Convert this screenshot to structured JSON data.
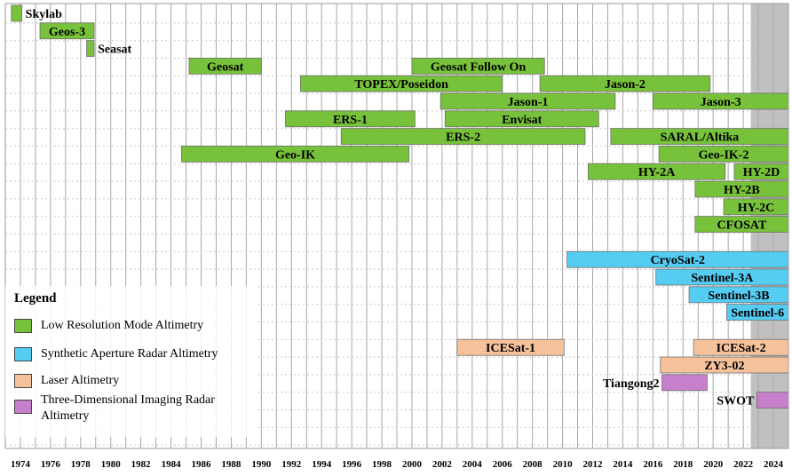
{
  "chart_data": {
    "type": "timeline",
    "title": "",
    "xlabel": "",
    "ylabel": "",
    "xlim": [
      1973,
      2025
    ],
    "xticks": [
      1974,
      1976,
      1978,
      1980,
      1982,
      1984,
      1986,
      1988,
      1990,
      1992,
      1994,
      1996,
      1998,
      2000,
      2002,
      2004,
      2006,
      2008,
      2010,
      2012,
      2014,
      2016,
      2018,
      2020,
      2022,
      2024
    ],
    "grid": "vertical",
    "shaded_region": [
      2022.5,
      2025
    ],
    "colors": {
      "low_resolution": "#77c23a",
      "sar": "#55ccf2",
      "laser": "#f6c29b",
      "imaging_radar": "#c77fcc",
      "shade": "#c0c0c0"
    },
    "missions": [
      {
        "name": "Skylab",
        "start": 1973.4,
        "end": 1974.1,
        "row": 0,
        "category": "low_resolution",
        "label_pos": "right"
      },
      {
        "name": "Geos-3",
        "start": 1975.3,
        "end": 1978.9,
        "row": 1,
        "category": "low_resolution",
        "label_pos": "inside"
      },
      {
        "name": "Seasat",
        "start": 1978.4,
        "end": 1978.9,
        "row": 2,
        "category": "low_resolution",
        "label_pos": "right"
      },
      {
        "name": "Geosat",
        "start": 1985.2,
        "end": 1990.0,
        "row": 3,
        "category": "low_resolution",
        "label_pos": "inside"
      },
      {
        "name": "Geosat Follow On",
        "start": 2000.0,
        "end": 2008.8,
        "row": 3,
        "category": "low_resolution",
        "label_pos": "inside"
      },
      {
        "name": "TOPEX/Poseidon",
        "start": 1992.6,
        "end": 2006.0,
        "row": 4,
        "category": "low_resolution",
        "label_pos": "inside"
      },
      {
        "name": "Jason-2",
        "start": 2008.5,
        "end": 2019.8,
        "row": 4,
        "category": "low_resolution",
        "label_pos": "inside"
      },
      {
        "name": "Jason-1",
        "start": 2001.9,
        "end": 2013.5,
        "row": 5,
        "category": "low_resolution",
        "label_pos": "inside"
      },
      {
        "name": "Jason-3",
        "start": 2016.0,
        "end": 2025.0,
        "row": 5,
        "category": "low_resolution",
        "label_pos": "inside"
      },
      {
        "name": "ERS-1",
        "start": 1991.6,
        "end": 2000.2,
        "row": 6,
        "category": "low_resolution",
        "label_pos": "inside"
      },
      {
        "name": "Envisat",
        "start": 2002.2,
        "end": 2012.4,
        "row": 6,
        "category": "low_resolution",
        "label_pos": "inside"
      },
      {
        "name": "ERS-2",
        "start": 1995.3,
        "end": 2011.5,
        "row": 7,
        "category": "low_resolution",
        "label_pos": "inside"
      },
      {
        "name": "SARAL/Altika",
        "start": 2013.2,
        "end": 2025.0,
        "row": 7,
        "category": "low_resolution",
        "label_pos": "inside"
      },
      {
        "name": "Geo-IK",
        "start": 1984.7,
        "end": 1999.8,
        "row": 8,
        "category": "low_resolution",
        "label_pos": "inside"
      },
      {
        "name": "Geo-IK-2",
        "start": 2016.4,
        "end": 2025.0,
        "row": 8,
        "category": "low_resolution",
        "label_pos": "inside"
      },
      {
        "name": "HY-2A",
        "start": 2011.7,
        "end": 2020.8,
        "row": 9,
        "category": "low_resolution",
        "label_pos": "inside"
      },
      {
        "name": "HY-2D",
        "start": 2021.4,
        "end": 2025.0,
        "row": 9,
        "category": "low_resolution",
        "label_pos": "inside"
      },
      {
        "name": "HY-2B",
        "start": 2018.8,
        "end": 2025.0,
        "row": 10,
        "category": "low_resolution",
        "label_pos": "inside"
      },
      {
        "name": "HY-2C",
        "start": 2020.7,
        "end": 2025.0,
        "row": 11,
        "category": "low_resolution",
        "label_pos": "inside"
      },
      {
        "name": "CFOSAT",
        "start": 2018.8,
        "end": 2025.0,
        "row": 12,
        "category": "low_resolution",
        "label_pos": "inside"
      },
      {
        "name": "CryoSat-2",
        "start": 2010.3,
        "end": 2025.0,
        "row": 14,
        "category": "sar",
        "label_pos": "inside"
      },
      {
        "name": "Sentinel-3A",
        "start": 2016.2,
        "end": 2025.0,
        "row": 15,
        "category": "sar",
        "label_pos": "inside"
      },
      {
        "name": "Sentinel-3B",
        "start": 2018.4,
        "end": 2025.0,
        "row": 16,
        "category": "sar",
        "label_pos": "inside"
      },
      {
        "name": "Sentinel-6",
        "start": 2020.9,
        "end": 2025.0,
        "row": 17,
        "category": "sar",
        "label_pos": "inside"
      },
      {
        "name": "ICESat-1",
        "start": 2003.0,
        "end": 2010.1,
        "row": 19,
        "category": "laser",
        "label_pos": "inside"
      },
      {
        "name": "ICESat-2",
        "start": 2018.7,
        "end": 2025.0,
        "row": 19,
        "category": "laser",
        "label_pos": "inside"
      },
      {
        "name": "ZY3-02",
        "start": 2016.5,
        "end": 2025.0,
        "row": 20,
        "category": "laser",
        "label_pos": "inside"
      },
      {
        "name": "Tiangong2",
        "start": 2016.6,
        "end": 2019.6,
        "row": 21,
        "category": "imaging_radar",
        "label_pos": "left"
      },
      {
        "name": "SWOT",
        "start": 2022.9,
        "end": 2025.0,
        "row": 22,
        "category": "imaging_radar",
        "label_pos": "left"
      }
    ],
    "legend": {
      "title": "Legend",
      "position": "bottom-left",
      "items": [
        {
          "label": "Low Resolution Mode Altimetry",
          "category": "low_resolution"
        },
        {
          "label": "Synthetic Aperture Radar Altimetry",
          "category": "sar"
        },
        {
          "label": "Laser Altimetry",
          "category": "laser"
        },
        {
          "label": "Three-Dimensional Imaging Radar Altimetry",
          "category": "imaging_radar"
        }
      ]
    }
  }
}
